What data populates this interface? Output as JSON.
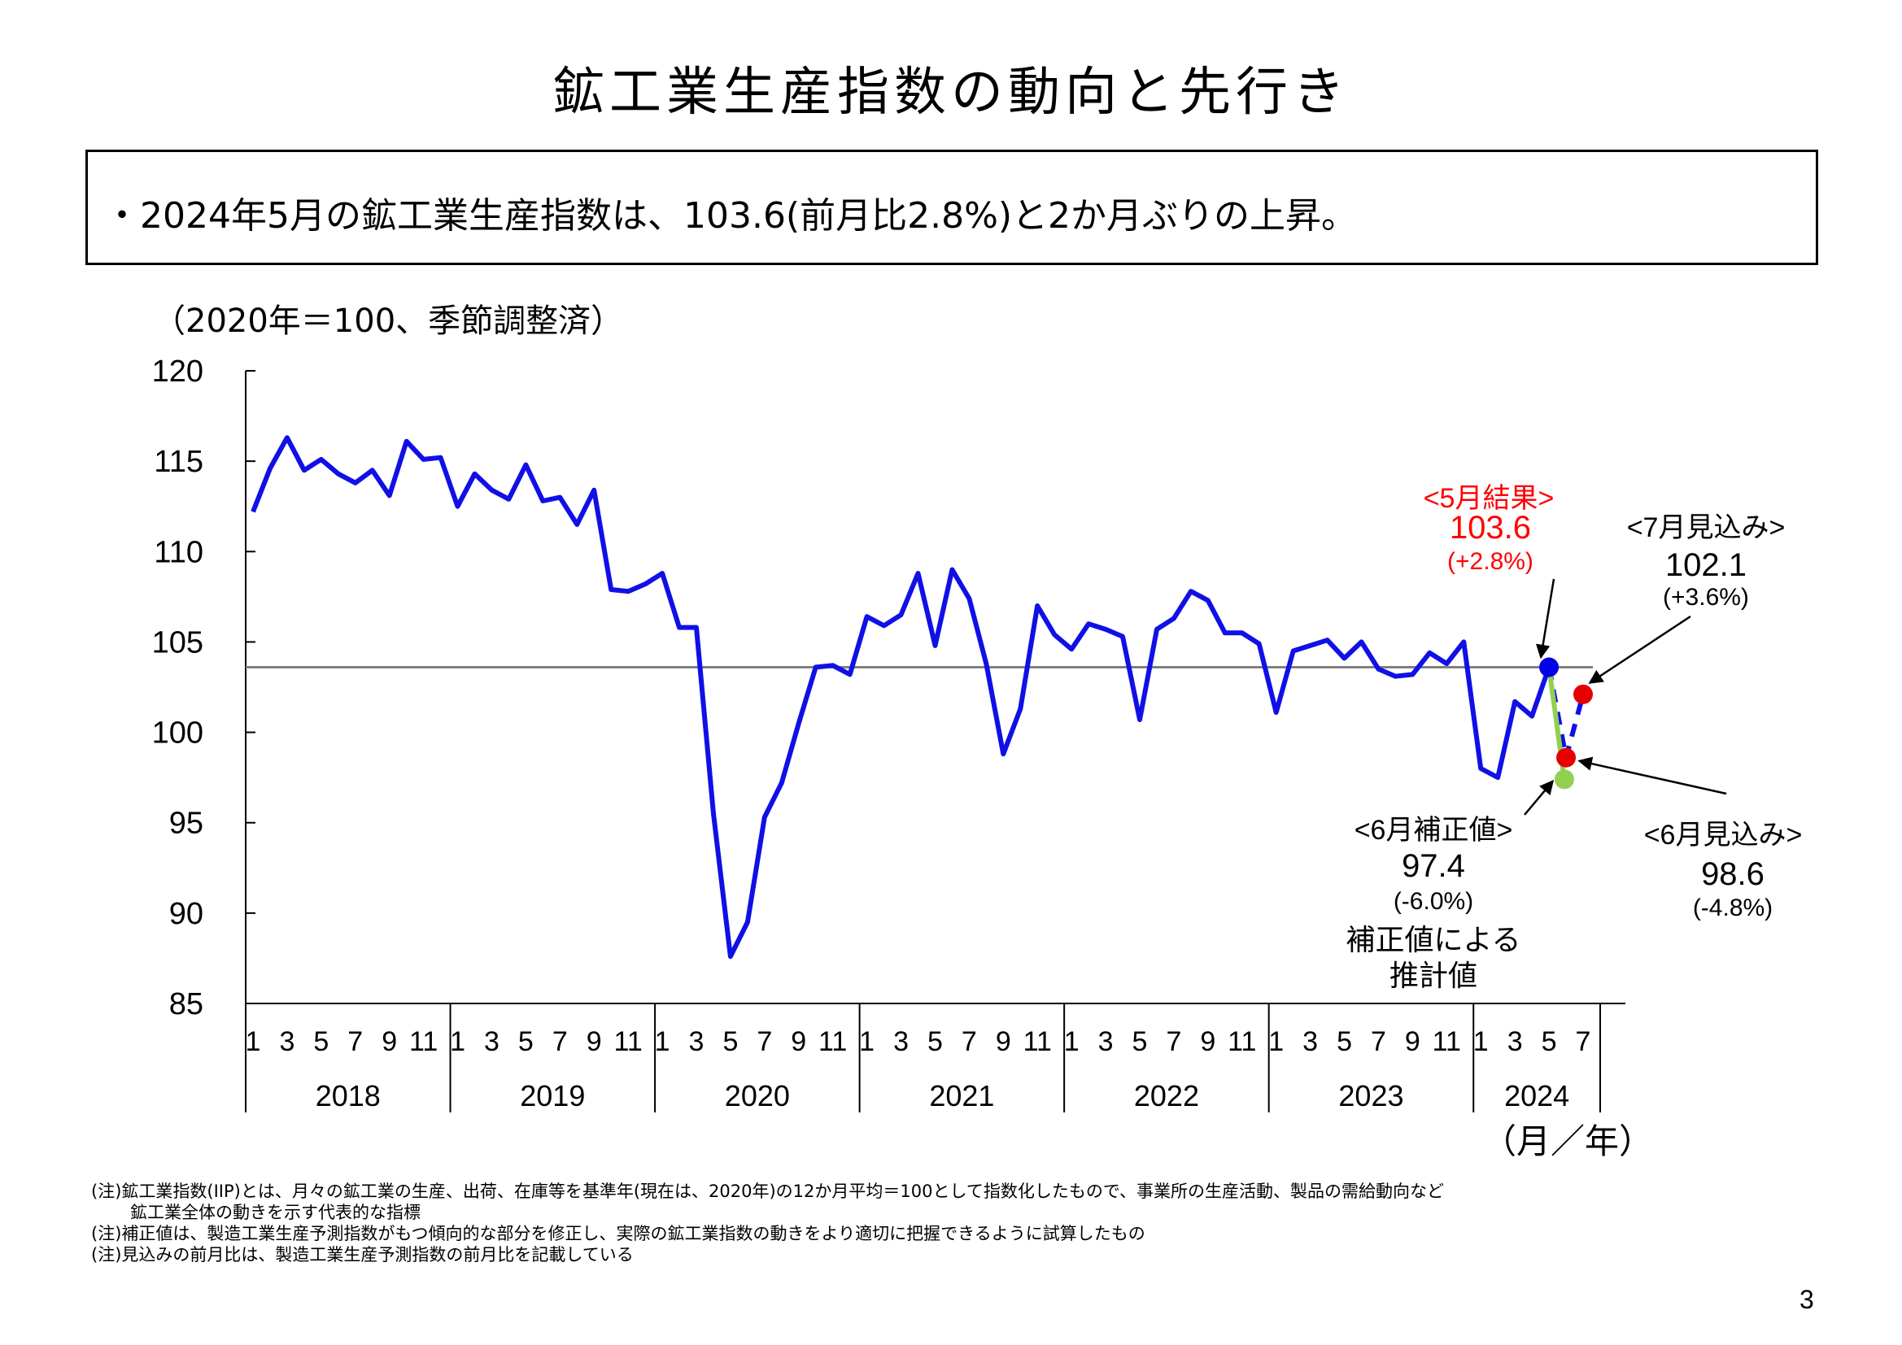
{
  "title": "鉱工業生産指数の動向と先行き",
  "summary": "・2024年5月の鉱工業生産指数は、103.6(前月比2.8%)と2か月ぶりの上昇。",
  "x_unit": "（月／年）",
  "notes": [
    "(注)鉱工業指数(IIP)とは、月々の鉱工業の生産、出荷、在庫等を基準年(現在は、2020年)の12か月平均＝100として指数化したもので、事業所の生産活動、製品の需給動向など",
    "鉱工業全体の動きを示す代表的な指標",
    "(注)補正値は、製造工業生産予測指数がもつ傾向的な部分を修正し、実際の鉱工業指数の動きをより適切に把握できるように試算したもの",
    "(注)見込みの前月比は、製造工業生産予測指数の前月比を記載している"
  ],
  "page_number": "3",
  "chart_data": {
    "type": "line",
    "ylabel": "（2020年＝100、季節調整済）",
    "ylim": [
      85,
      120
    ],
    "yticks": [
      85,
      90,
      95,
      100,
      105,
      110,
      115,
      120
    ],
    "month_labels": [
      "1",
      "3",
      "5",
      "7",
      "9",
      "11"
    ],
    "month_labels_2024": [
      "1",
      "3",
      "5",
      "7"
    ],
    "years": [
      "2018",
      "2019",
      "2020",
      "2021",
      "2022",
      "2023",
      "2024"
    ],
    "series": [
      {
        "values": [
          112.2,
          114.6,
          116.3,
          114.5,
          115.1,
          114.3,
          113.8,
          114.5,
          113.1,
          116.1,
          115.1,
          115.2,
          112.5,
          114.3,
          113.4,
          112.9,
          114.8,
          112.8,
          113.0,
          111.5,
          113.4,
          107.9,
          107.8,
          108.2,
          108.8,
          105.8,
          105.8,
          95.5,
          87.6,
          89.5,
          95.3,
          97.2,
          100.5,
          103.6,
          103.7,
          103.2,
          106.4,
          105.9,
          106.5,
          108.8,
          104.8,
          109.0,
          107.4,
          103.8,
          98.8,
          101.3,
          107.0,
          105.4,
          104.6,
          106.0,
          105.7,
          105.3,
          100.7,
          105.7,
          106.3,
          107.8,
          107.3,
          105.5,
          105.5,
          104.9,
          101.1,
          104.5,
          104.8,
          105.1,
          104.1,
          105.0,
          103.5,
          103.1,
          103.2,
          104.4,
          103.8,
          105.0,
          98.0,
          97.5,
          101.7,
          100.9,
          103.6
        ]
      }
    ],
    "forecast_line": [
      103.6,
      98.6,
      102.1
    ],
    "corrected_line": [
      103.6,
      97.4
    ],
    "reference_level": 103.6,
    "colors": {
      "series": "#1010e6",
      "result": "#0000e6",
      "forecast": "#e60000",
      "corrected": "#92d050",
      "reference": "#808080"
    },
    "annotations": {
      "may_result": {
        "label": "<5月結果>",
        "value": "103.6",
        "change": "(+2.8%)"
      },
      "jul_forecast": {
        "label": "<7月見込み>",
        "value": "102.1",
        "change": "(+3.6%)"
      },
      "jun_corrected": {
        "label": "<6月補正値>",
        "value": "97.4",
        "change": "(-6.0%)",
        "note1": "補正値による",
        "note2": "推計値"
      },
      "jun_forecast": {
        "label": "<6月見込み>",
        "value": "98.6",
        "change": "(-4.8%)"
      }
    }
  }
}
